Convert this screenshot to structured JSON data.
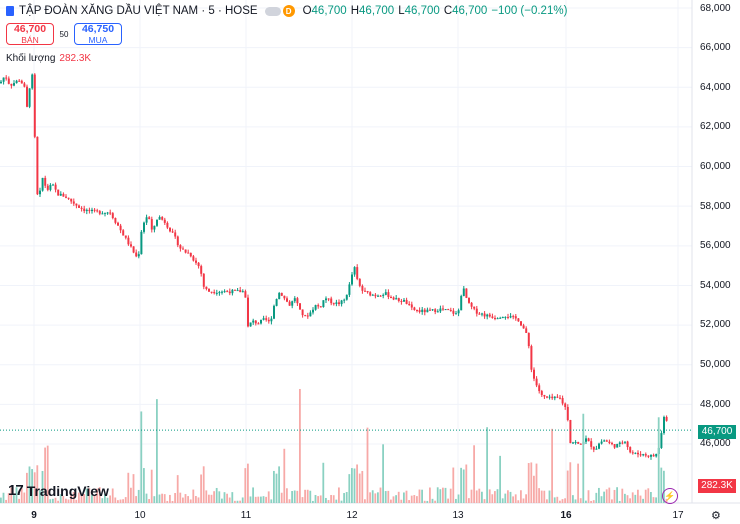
{
  "header": {
    "title": "TẬP ĐOÀN XĂNG DẦU VIỆT NAM · 5 · HOSE",
    "badge": "D",
    "o_label": "O",
    "o_value": "46,700",
    "h_label": "H",
    "h_value": "46,700",
    "l_label": "L",
    "l_value": "46,700",
    "c_label": "C",
    "c_value": "46,700",
    "change": "−100 (−0.21%)"
  },
  "trade": {
    "sell_price": "46,700",
    "sell_label": "BÁN",
    "spread": "50",
    "buy_price": "46,750",
    "buy_label": "MUA"
  },
  "volume": {
    "label": "Khối lượng",
    "value": "282.3K"
  },
  "brand": {
    "name": "TradingView",
    "mark": "17"
  },
  "axis": {
    "y_ticks": [
      "68,000",
      "66,000",
      "64,000",
      "62,000",
      "60,000",
      "58,000",
      "56,000",
      "54,000",
      "52,000",
      "50,000",
      "48,000",
      "46,000"
    ],
    "x_ticks": [
      "9",
      "10",
      "11",
      "12",
      "13",
      "16",
      "17"
    ],
    "last_price": "46,700",
    "last_volume": "282.3K"
  },
  "colors": {
    "up": "#089981",
    "down": "#f23645",
    "up_vol": "#8ad1c2",
    "down_vol": "#f7a9a7"
  },
  "chart_data": {
    "type": "candlestick",
    "title": "TẬP ĐOÀN XĂNG DẦU VIỆT NAM · 5 · HOSE",
    "ylim": [
      45000,
      68000
    ],
    "x_ticks": [
      "9",
      "10",
      "11",
      "12",
      "13",
      "16",
      "17"
    ],
    "approx_close_path": [
      [
        0,
        64200
      ],
      [
        5,
        64600
      ],
      [
        10,
        64100
      ],
      [
        20,
        64400
      ],
      [
        25,
        63900
      ],
      [
        28,
        62500
      ],
      [
        30,
        64400
      ],
      [
        32,
        64800
      ],
      [
        35,
        61200
      ],
      [
        38,
        57900
      ],
      [
        42,
        59500
      ],
      [
        47,
        58800
      ],
      [
        52,
        59100
      ],
      [
        58,
        58600
      ],
      [
        65,
        58500
      ],
      [
        70,
        58300
      ],
      [
        78,
        58000
      ],
      [
        85,
        57800
      ],
      [
        95,
        57700
      ],
      [
        110,
        57700
      ],
      [
        138,
        55300
      ],
      [
        142,
        57000
      ],
      [
        148,
        57600
      ],
      [
        152,
        56700
      ],
      [
        158,
        57500
      ],
      [
        165,
        57200
      ],
      [
        170,
        56800
      ],
      [
        175,
        56400
      ],
      [
        180,
        55900
      ],
      [
        185,
        55700
      ],
      [
        190,
        55600
      ],
      [
        195,
        55200
      ],
      [
        200,
        54900
      ],
      [
        204,
        53900
      ],
      [
        208,
        53700
      ],
      [
        215,
        53700
      ],
      [
        230,
        53700
      ],
      [
        245,
        53700
      ],
      [
        248,
        51900
      ],
      [
        252,
        52200
      ],
      [
        258,
        52100
      ],
      [
        265,
        52300
      ],
      [
        270,
        52100
      ],
      [
        275,
        53200
      ],
      [
        280,
        53700
      ],
      [
        285,
        53300
      ],
      [
        290,
        53000
      ],
      [
        295,
        53400
      ],
      [
        300,
        52700
      ],
      [
        305,
        52400
      ],
      [
        310,
        52600
      ],
      [
        315,
        53000
      ],
      [
        320,
        52900
      ],
      [
        325,
        53400
      ],
      [
        330,
        53200
      ],
      [
        335,
        53100
      ],
      [
        340,
        53100
      ],
      [
        345,
        53300
      ],
      [
        350,
        54100
      ],
      [
        354,
        55000
      ],
      [
        358,
        54100
      ],
      [
        363,
        53700
      ],
      [
        368,
        53600
      ],
      [
        375,
        53500
      ],
      [
        385,
        53600
      ],
      [
        395,
        53300
      ],
      [
        405,
        53200
      ],
      [
        412,
        52800
      ],
      [
        420,
        52700
      ],
      [
        430,
        52700
      ],
      [
        440,
        52800
      ],
      [
        450,
        52700
      ],
      [
        458,
        52500
      ],
      [
        460,
        53300
      ],
      [
        463,
        53900
      ],
      [
        468,
        53100
      ],
      [
        475,
        52700
      ],
      [
        485,
        52500
      ],
      [
        495,
        52400
      ],
      [
        505,
        52500
      ],
      [
        510,
        52400
      ],
      [
        518,
        52300
      ],
      [
        524,
        51800
      ],
      [
        528,
        51300
      ],
      [
        531,
        49900
      ],
      [
        534,
        49300
      ],
      [
        538,
        48800
      ],
      [
        542,
        48400
      ],
      [
        548,
        48300
      ],
      [
        560,
        48300
      ],
      [
        567,
        47700
      ],
      [
        570,
        46100
      ],
      [
        575,
        46100
      ],
      [
        580,
        45900
      ],
      [
        585,
        46300
      ],
      [
        590,
        46000
      ],
      [
        595,
        45700
      ],
      [
        600,
        46100
      ],
      [
        605,
        46200
      ],
      [
        610,
        46000
      ],
      [
        615,
        45900
      ],
      [
        620,
        46000
      ],
      [
        625,
        46200
      ],
      [
        630,
        45600
      ],
      [
        635,
        45500
      ],
      [
        640,
        45500
      ],
      [
        650,
        45400
      ],
      [
        655,
        45400
      ],
      [
        658,
        45600
      ],
      [
        662,
        46700
      ],
      [
        665,
        47800
      ],
      [
        668,
        46700
      ]
    ],
    "last_price": 46700,
    "volume_last": "282.3K",
    "volume_unit": "shares"
  }
}
